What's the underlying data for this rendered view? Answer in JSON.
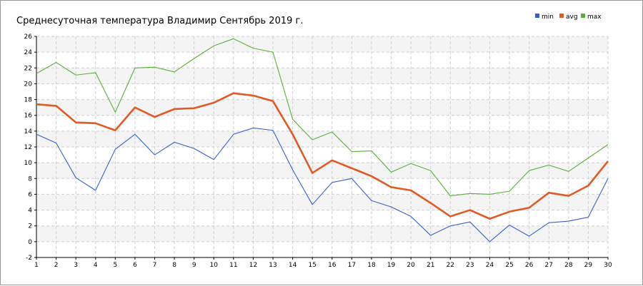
{
  "chart_data": {
    "type": "line",
    "title": "Среднесуточная температура Владимир  Сентябрь 2019 г.",
    "xlabel": "",
    "ylabel": "",
    "x": [
      1,
      2,
      3,
      4,
      5,
      6,
      7,
      8,
      9,
      10,
      11,
      12,
      13,
      14,
      15,
      16,
      17,
      18,
      19,
      20,
      21,
      22,
      23,
      24,
      25,
      26,
      27,
      28,
      29,
      30
    ],
    "xlim": [
      1,
      30
    ],
    "ylim": [
      -2,
      26
    ],
    "yticks": [
      -2,
      0,
      2,
      4,
      6,
      8,
      10,
      12,
      14,
      16,
      18,
      20,
      22,
      24,
      26
    ],
    "xticks": [
      "1",
      "2",
      "3",
      "4",
      "5",
      "6",
      "7",
      "8",
      "9",
      "10",
      "11",
      "12",
      "13",
      "14",
      "15",
      "16",
      "17",
      "18",
      "19",
      "20",
      "21",
      "22",
      "23",
      "24",
      "25",
      "26",
      "27",
      "28",
      "29",
      "30"
    ],
    "grid": true,
    "legend_position": "top-right",
    "series": [
      {
        "name": "min",
        "color": "#3b5fd0",
        "values": [
          13.6,
          12.5,
          8.1,
          6.5,
          11.7,
          13.6,
          11.0,
          12.6,
          11.8,
          10.4,
          13.6,
          14.4,
          14.1,
          9.1,
          4.7,
          7.5,
          8.0,
          5.2,
          4.4,
          3.2,
          0.8,
          2.0,
          2.5,
          0.0,
          2.1,
          0.7,
          2.4,
          2.6,
          3.1,
          8.0
        ]
      },
      {
        "name": "avg",
        "color": "#e35a24",
        "values": [
          17.4,
          17.2,
          15.1,
          15.0,
          14.1,
          17.0,
          15.8,
          16.8,
          16.9,
          17.6,
          18.8,
          18.5,
          17.8,
          13.6,
          8.7,
          10.3,
          9.3,
          8.3,
          6.9,
          6.5,
          4.9,
          3.2,
          4.0,
          2.9,
          3.8,
          4.3,
          6.2,
          5.8,
          7.1,
          10.2
        ]
      },
      {
        "name": "max",
        "color": "#5aaf3c",
        "values": [
          21.3,
          22.7,
          21.1,
          21.4,
          16.4,
          22.0,
          22.1,
          21.5,
          23.2,
          24.8,
          25.7,
          24.5,
          24.0,
          15.5,
          12.9,
          13.9,
          11.4,
          11.5,
          8.8,
          9.9,
          9.0,
          5.8,
          6.1,
          6.0,
          6.4,
          9.0,
          9.7,
          8.9,
          10.6,
          12.3
        ]
      }
    ]
  }
}
